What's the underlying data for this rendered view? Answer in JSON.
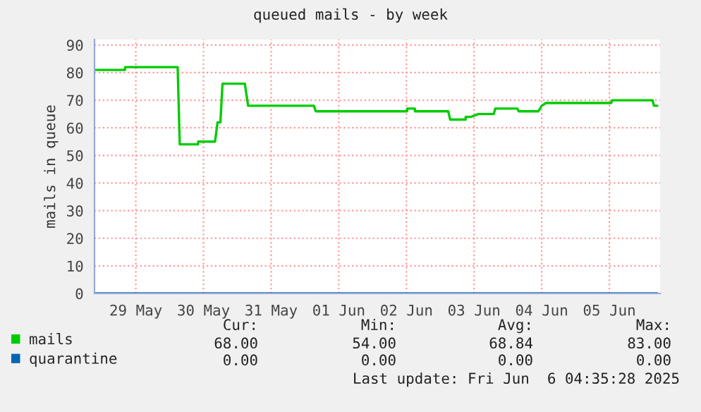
{
  "chart_data": {
    "type": "line",
    "title": "queued mails - by week",
    "ylabel": "mails in queue",
    "series": [
      {
        "name": "mails",
        "color": "#00cc00",
        "x": [
          "2025-05-28T21:20",
          "2025-05-29T08:10",
          "2025-05-29T08:11",
          "2025-05-30T02:50",
          "2025-05-30T03:35",
          "2025-05-30T10:05",
          "2025-05-30T10:06",
          "2025-05-30T16:05",
          "2025-05-30T17:00",
          "2025-05-30T18:00",
          "2025-05-30T18:45",
          "2025-05-31T02:40",
          "2025-05-31T03:50",
          "2025-06-01T03:10",
          "2025-06-01T03:50",
          "2025-06-02T12:15",
          "2025-06-02T12:16",
          "2025-06-02T15:00",
          "2025-06-02T15:01",
          "2025-06-03T02:50",
          "2025-06-03T03:30",
          "2025-06-03T09:00",
          "2025-06-03T09:01",
          "2025-06-03T11:00",
          "2025-06-03T13:30",
          "2025-06-03T19:00",
          "2025-06-03T19:30",
          "2025-06-04T03:20",
          "2025-06-04T03:50",
          "2025-06-04T10:50",
          "2025-06-04T12:00",
          "2025-06-04T13:30",
          "2025-06-05T12:40",
          "2025-06-05T13:00",
          "2025-06-06T03:20",
          "2025-06-06T03:50",
          "2025-06-06T05:00"
        ],
        "values": [
          81,
          81,
          82,
          82,
          54,
          54,
          55,
          55,
          62,
          62,
          76,
          76,
          68,
          68,
          66,
          66,
          67,
          67,
          66,
          66,
          63,
          63,
          64,
          64,
          65,
          65,
          67,
          67,
          66,
          66,
          68,
          69,
          69,
          70,
          70,
          68,
          68
        ]
      },
      {
        "name": "quarantine",
        "color": "#0066b3",
        "x": [
          "2025-05-28T21:20",
          "2025-06-06T05:00"
        ],
        "values": [
          0,
          0
        ]
      }
    ],
    "xlim": [
      "2025-05-28T21:20",
      "2025-06-06T06:00"
    ],
    "xticks": [
      {
        "value": "2025-05-29T12:00",
        "label": "29 May"
      },
      {
        "value": "2025-05-30T12:00",
        "label": "30 May"
      },
      {
        "value": "2025-05-31T12:00",
        "label": "31 May"
      },
      {
        "value": "2025-06-01T12:00",
        "label": "01 Jun"
      },
      {
        "value": "2025-06-02T12:00",
        "label": "02 Jun"
      },
      {
        "value": "2025-06-03T12:00",
        "label": "03 Jun"
      },
      {
        "value": "2025-06-04T12:00",
        "label": "04 Jun"
      },
      {
        "value": "2025-06-05T12:00",
        "label": "05 Jun"
      }
    ],
    "ylim": [
      0,
      92
    ],
    "yticks": [
      0,
      10,
      20,
      30,
      40,
      50,
      60,
      70,
      80,
      90
    ],
    "grid": true,
    "legend": "bottom left",
    "annotations": [
      "Cur:",
      "Min:",
      "Avg:",
      "Max:",
      "68.00",
      "54.00",
      "68.84",
      "83.00",
      "0.00",
      "0.00",
      "0.00",
      "0.00",
      "Last update: Fri Jun  6 04:35:28 2025"
    ]
  }
}
